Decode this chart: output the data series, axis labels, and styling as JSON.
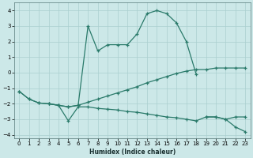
{
  "xlabel": "Humidex (Indice chaleur)",
  "xlim": [
    -0.5,
    23.5
  ],
  "ylim": [
    -4.2,
    4.5
  ],
  "yticks": [
    -4,
    -3,
    -2,
    -1,
    0,
    1,
    2,
    3,
    4
  ],
  "xticks": [
    0,
    1,
    2,
    3,
    4,
    5,
    6,
    7,
    8,
    9,
    10,
    11,
    12,
    13,
    14,
    15,
    16,
    17,
    18,
    19,
    20,
    21,
    22,
    23
  ],
  "background_color": "#cce8e8",
  "grid_color": "#aacfcf",
  "line_color": "#2a7a6a",
  "line1_x": [
    3,
    4,
    5,
    6,
    7,
    8,
    9,
    10,
    11,
    12,
    13,
    14,
    15,
    16,
    17,
    18
  ],
  "line1_y": [
    -2.0,
    -2.1,
    -2.2,
    -2.1,
    3.0,
    1.4,
    1.8,
    1.8,
    1.8,
    2.5,
    3.8,
    4.0,
    3.8,
    3.2,
    2.0,
    -0.1
  ],
  "line2_x": [
    0,
    1,
    2,
    3,
    4,
    5,
    6,
    7,
    8,
    9,
    10,
    11,
    12,
    13,
    14,
    15,
    16,
    17,
    18,
    19,
    20,
    21,
    22,
    23
  ],
  "line2_y": [
    -1.2,
    -1.7,
    -1.95,
    -2.0,
    -2.1,
    -3.1,
    -2.2,
    -2.2,
    -2.3,
    -2.35,
    -2.4,
    -2.5,
    -2.55,
    -2.65,
    -2.75,
    -2.85,
    -2.9,
    -3.0,
    -3.1,
    -2.85,
    -2.85,
    -3.0,
    -2.85,
    -2.85
  ],
  "line3_x": [
    0,
    1,
    2,
    3,
    4,
    5,
    6,
    7,
    8,
    9,
    10,
    11,
    12,
    13,
    14,
    15,
    16,
    17,
    18,
    19,
    20,
    21,
    22,
    23
  ],
  "line3_y": [
    -1.2,
    -1.7,
    -1.95,
    -2.0,
    -2.1,
    -2.2,
    -2.1,
    -1.9,
    -1.7,
    -1.5,
    -1.3,
    -1.1,
    -0.9,
    -0.65,
    -0.45,
    -0.25,
    -0.05,
    0.1,
    0.2,
    0.2,
    0.3,
    0.3,
    0.3,
    0.3
  ],
  "line4_x": [
    19,
    20,
    21,
    22,
    23
  ],
  "line4_y": [
    -2.85,
    -2.85,
    -3.0,
    -3.5,
    -3.8
  ]
}
